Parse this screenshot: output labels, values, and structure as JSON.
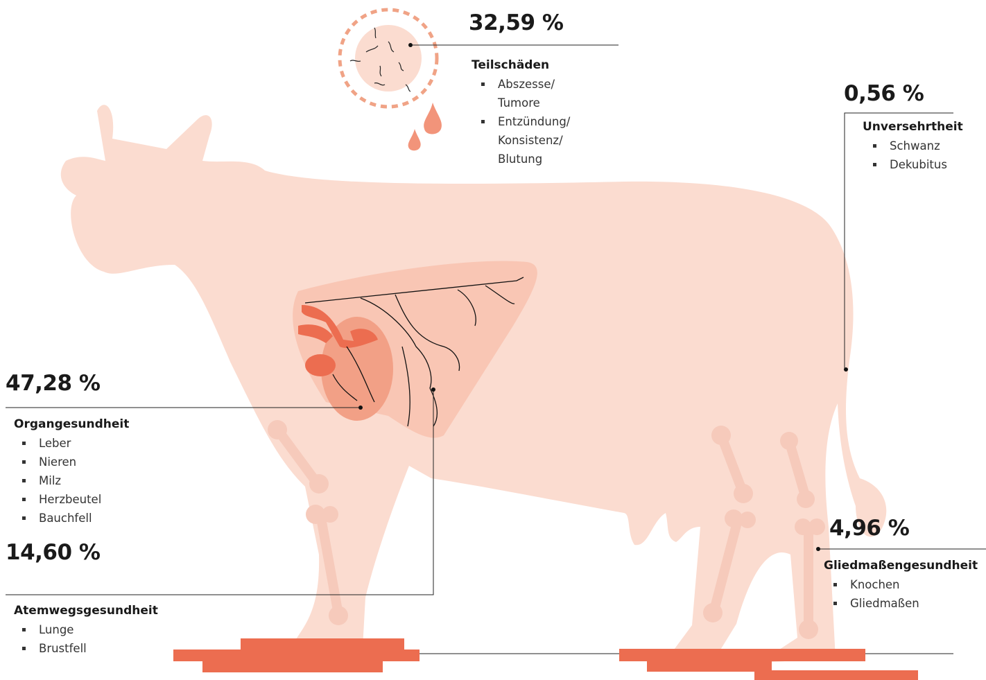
{
  "callouts": [
    {
      "value": "32,59 %",
      "title": "Teilschäden",
      "items": [
        "Abszesse/ Tumore",
        "Entzündung/ Konsistenz/ Blutung"
      ]
    },
    {
      "value": "0,56 %",
      "title": "Unversehrtheit",
      "items": [
        "Schwanz",
        "Dekubitus"
      ]
    },
    {
      "value": "47,28 %",
      "title": "Organgesundheit",
      "items": [
        "Leber",
        "Nieren",
        "Milz",
        "Herzbeutel",
        "Bauchfell"
      ]
    },
    {
      "value": "14,60 %",
      "title": "Atemwegsgesundheit",
      "items": [
        "Lunge",
        "Brustfell"
      ]
    },
    {
      "value": "4,96 %",
      "title": "Gliedmaßengesundheit",
      "items": [
        "Knochen",
        "Gliedmaßen"
      ]
    }
  ]
}
